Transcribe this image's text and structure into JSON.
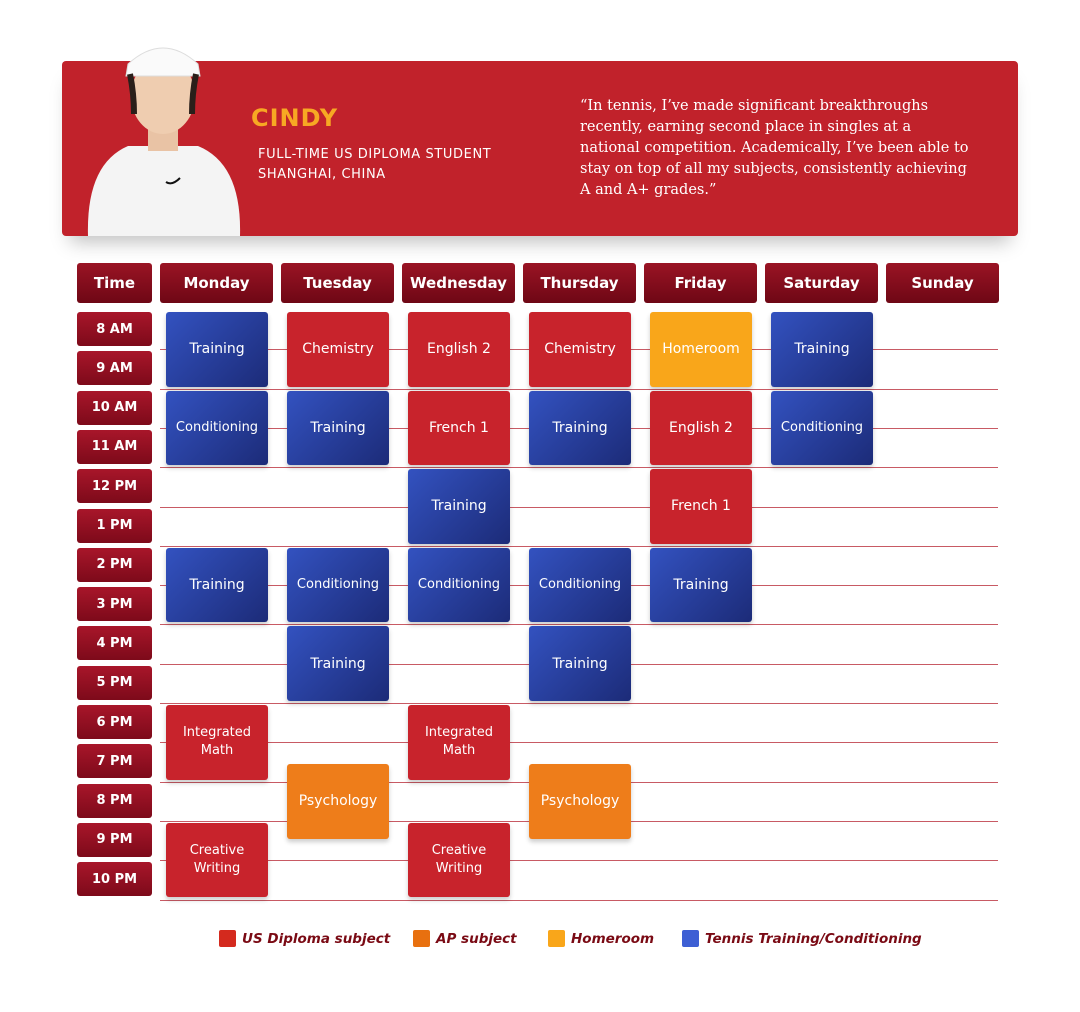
{
  "profile": {
    "name": "CINDY",
    "role": "FULL-TIME US DIPLOMA STUDENT",
    "location": "SHANGHAI, CHINA",
    "quote": "“In tennis, I’ve made significant breakthroughs recently, earning second place in singles at a national competition. Academically, I’ve been able to stay on top of all my subjects, consistently achieving A and A+ grades.”"
  },
  "schedule": {
    "time_header": "Time",
    "times": [
      "8 AM",
      "9 AM",
      "10 AM",
      "11 AM",
      "12 PM",
      "1 PM",
      "2 PM",
      "3 PM",
      "4 PM",
      "5 PM",
      "6 PM",
      "7 PM",
      "8 PM",
      "9 PM",
      "10 PM"
    ],
    "days": [
      {
        "name": "Monday",
        "events": [
          {
            "label": "Training",
            "start": 8,
            "end": 10,
            "color": "#2a45a8"
          },
          {
            "label": "Conditioning",
            "start": 10,
            "end": 12,
            "color": "#2a45a8"
          },
          {
            "label": "Training",
            "start": 14,
            "end": 16,
            "color": "#2a45a8"
          },
          {
            "label": "Integrated Math",
            "start": 18,
            "end": 20,
            "color": "#c8232c"
          },
          {
            "label": "Creative Writing",
            "start": 21,
            "end": 23,
            "color": "#c8232c"
          }
        ]
      },
      {
        "name": "Tuesday",
        "events": [
          {
            "label": "Chemistry",
            "start": 8,
            "end": 10,
            "color": "#c8232c"
          },
          {
            "label": "Training",
            "start": 10,
            "end": 12,
            "color": "#2a45a8"
          },
          {
            "label": "Conditioning",
            "start": 14,
            "end": 16,
            "color": "#2a45a8"
          },
          {
            "label": "Training",
            "start": 16,
            "end": 18,
            "color": "#2a45a8"
          },
          {
            "label": "Psychology",
            "start": 19.5,
            "end": 21.5,
            "color": "#ee7d1a"
          }
        ]
      },
      {
        "name": "Wednesday",
        "events": [
          {
            "label": "English 2",
            "start": 8,
            "end": 10,
            "color": "#c8232c"
          },
          {
            "label": "French 1",
            "start": 10,
            "end": 12,
            "color": "#c8232c"
          },
          {
            "label": "Training",
            "start": 12,
            "end": 14,
            "color": "#2a45a8"
          },
          {
            "label": "Conditioning",
            "start": 14,
            "end": 16,
            "color": "#2a45a8"
          },
          {
            "label": "Integrated Math",
            "start": 18,
            "end": 20,
            "color": "#c8232c"
          },
          {
            "label": "Creative Writing",
            "start": 21,
            "end": 23,
            "color": "#c8232c"
          }
        ]
      },
      {
        "name": "Thursday",
        "events": [
          {
            "label": "Chemistry",
            "start": 8,
            "end": 10,
            "color": "#c8232c"
          },
          {
            "label": "Training",
            "start": 10,
            "end": 12,
            "color": "#2a45a8"
          },
          {
            "label": "Conditioning",
            "start": 14,
            "end": 16,
            "color": "#2a45a8"
          },
          {
            "label": "Training",
            "start": 16,
            "end": 18,
            "color": "#2a45a8"
          },
          {
            "label": "Psychology",
            "start": 19.5,
            "end": 21.5,
            "color": "#ee7d1a"
          }
        ]
      },
      {
        "name": "Friday",
        "events": [
          {
            "label": "Homeroom",
            "start": 8,
            "end": 10,
            "color": "#f9a61a"
          },
          {
            "label": "English 2",
            "start": 10,
            "end": 12,
            "color": "#c8232c"
          },
          {
            "label": "French 1",
            "start": 12,
            "end": 14,
            "color": "#c8232c"
          },
          {
            "label": "Training",
            "start": 14,
            "end": 16,
            "color": "#2a45a8"
          }
        ]
      },
      {
        "name": "Saturday",
        "events": [
          {
            "label": "Training",
            "start": 8,
            "end": 10,
            "color": "#2a45a8"
          },
          {
            "label": "Conditioning",
            "start": 10,
            "end": 12,
            "color": "#2a45a8"
          }
        ]
      },
      {
        "name": "Sunday",
        "events": []
      }
    ]
  },
  "legend": [
    {
      "label": "US Diploma subject",
      "color": "#d42a1e"
    },
    {
      "label": "AP subject",
      "color": "#e8700f"
    },
    {
      "label": "Homeroom",
      "color": "#f9a61a"
    },
    {
      "label": "Tennis Training/Conditioning",
      "color": "#3d5fd4"
    }
  ]
}
